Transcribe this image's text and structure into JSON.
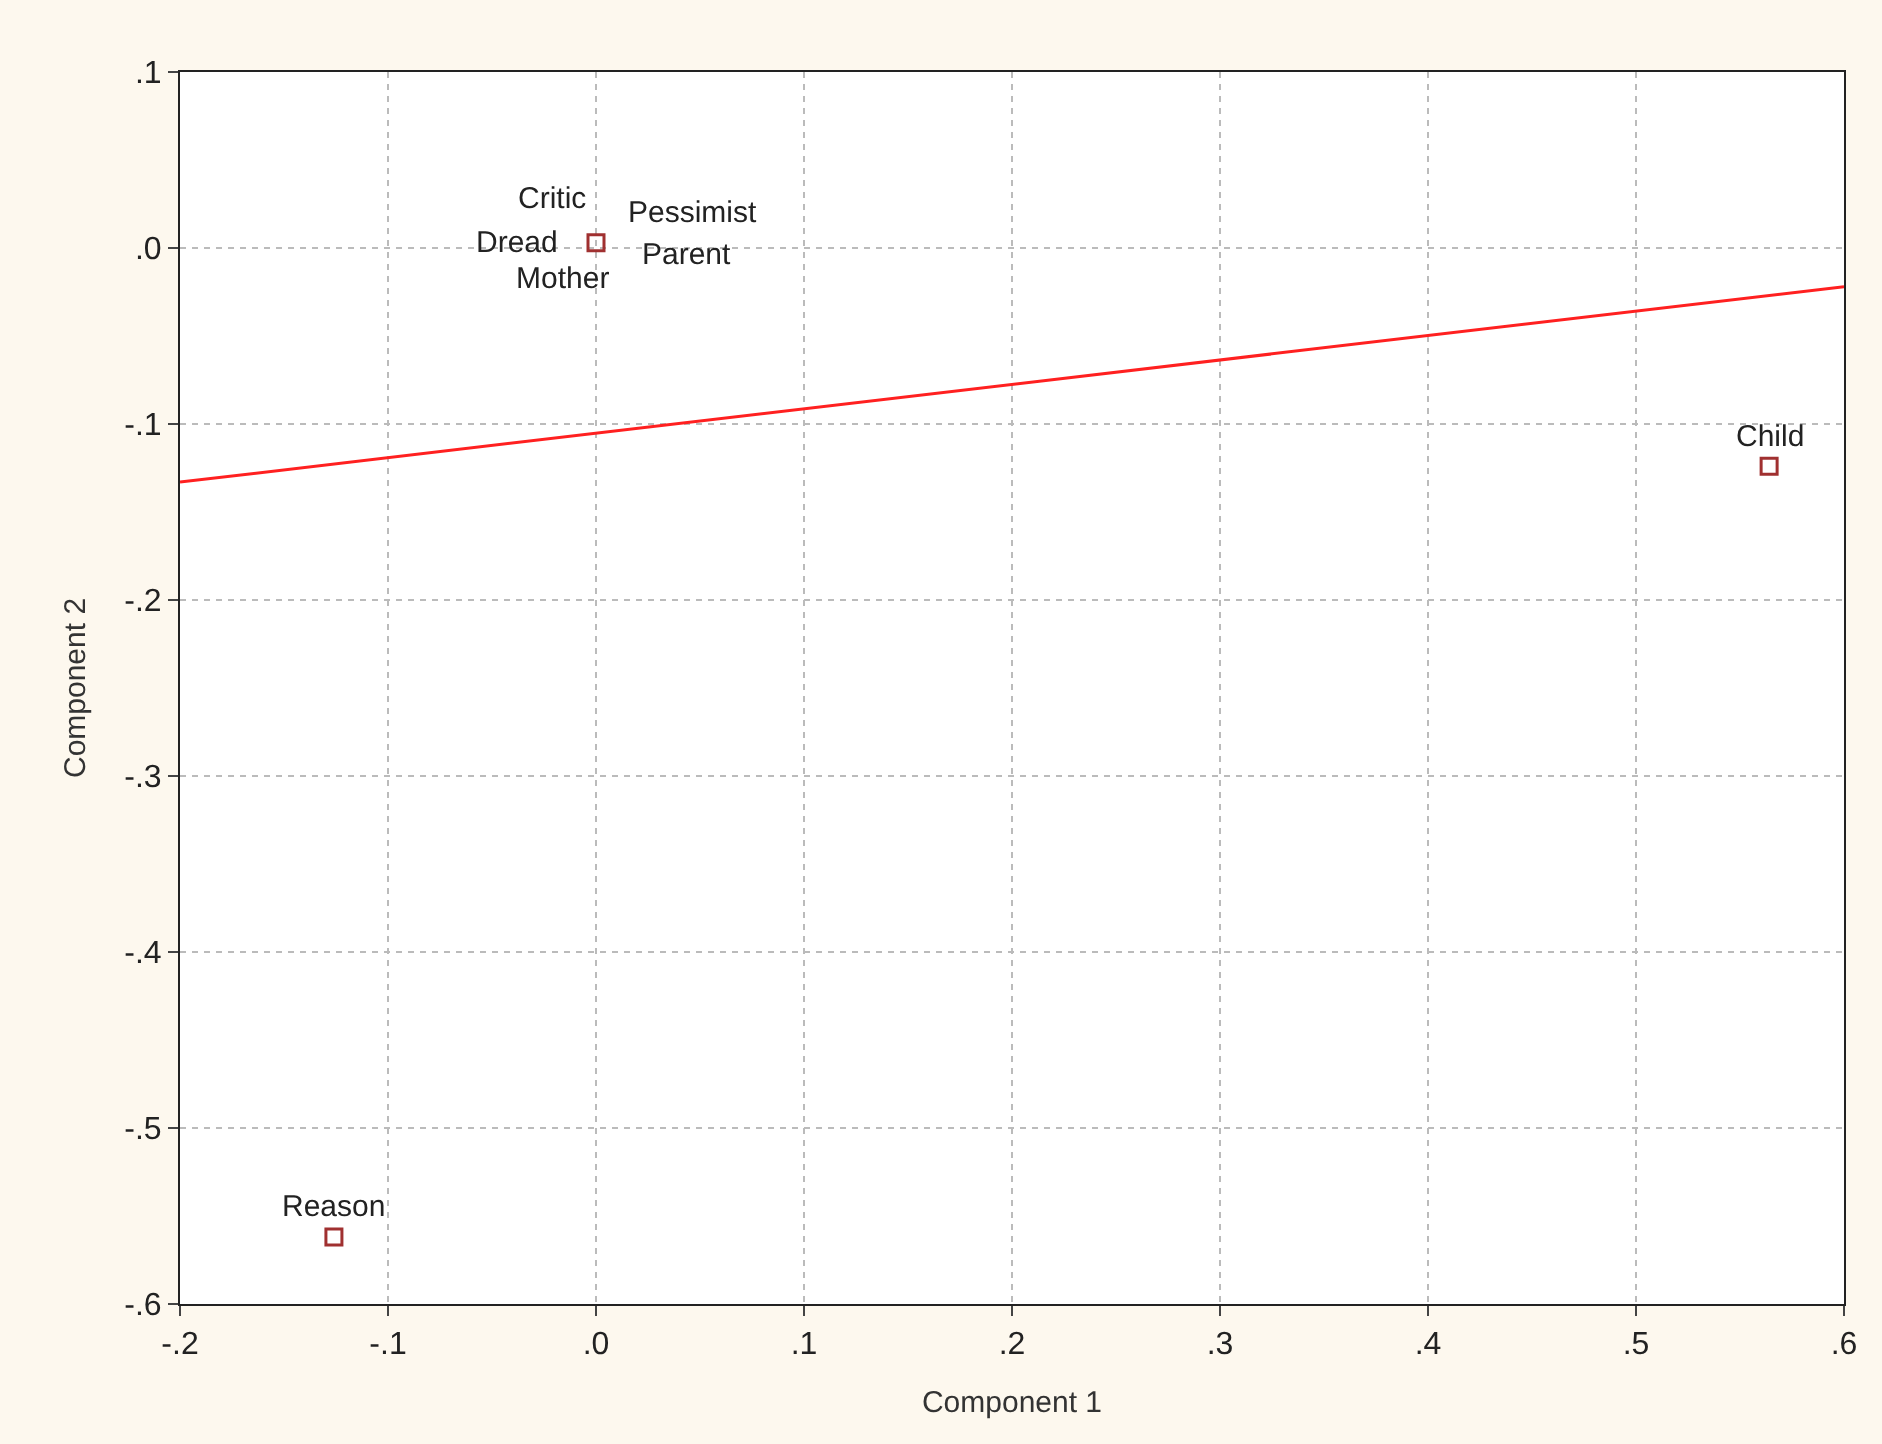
{
  "chart_data": {
    "type": "scatter",
    "xlabel": "Component 1",
    "ylabel": "Component 2",
    "xlim": [
      -0.2,
      0.6
    ],
    "ylim": [
      -0.6,
      0.1
    ],
    "xticks": [
      {
        "value": -0.2,
        "label": "-.2"
      },
      {
        "value": -0.1,
        "label": "-.1"
      },
      {
        "value": 0,
        "label": ".0"
      },
      {
        "value": 0.1,
        "label": ".1"
      },
      {
        "value": 0.2,
        "label": ".2"
      },
      {
        "value": 0.3,
        "label": ".3"
      },
      {
        "value": 0.4,
        "label": ".4"
      },
      {
        "value": 0.5,
        "label": ".5"
      },
      {
        "value": 0.6,
        "label": ".6"
      }
    ],
    "yticks": [
      {
        "value": -0.6,
        "label": "-.6"
      },
      {
        "value": -0.5,
        "label": "-.5"
      },
      {
        "value": -0.4,
        "label": "-.4"
      },
      {
        "value": -0.3,
        "label": "-.3"
      },
      {
        "value": -0.2,
        "label": "-.2"
      },
      {
        "value": -0.1,
        "label": "-.1"
      },
      {
        "value": 0,
        "label": ".0"
      },
      {
        "value": 0.1,
        "label": ".1"
      }
    ],
    "grid": true,
    "series": [
      {
        "color": "#a03030",
        "marker": "square",
        "x": [
          0,
          0.564,
          -0.126
        ],
        "values": [
          0.003,
          -0.124,
          -0.562
        ]
      },
      {
        "type": "line",
        "color": "#ff2020",
        "line_style": "solid",
        "x": [
          -0.2,
          0.6
        ],
        "values": [
          -0.133,
          -0.022
        ]
      }
    ],
    "annotations": [
      {
        "text": "Critic",
        "x": 0,
        "y": 0.003
      },
      {
        "text": "Pessimist",
        "x": 0,
        "y": 0.003
      },
      {
        "text": "Dread",
        "x": 0,
        "y": 0.003
      },
      {
        "text": "Parent",
        "x": 0,
        "y": 0.003
      },
      {
        "text": "Mother",
        "x": 0,
        "y": 0.003
      },
      {
        "text": "Child",
        "x": 0.564,
        "y": -0.124
      },
      {
        "text": "Reason",
        "x": -0.126,
        "y": -0.562
      }
    ]
  }
}
